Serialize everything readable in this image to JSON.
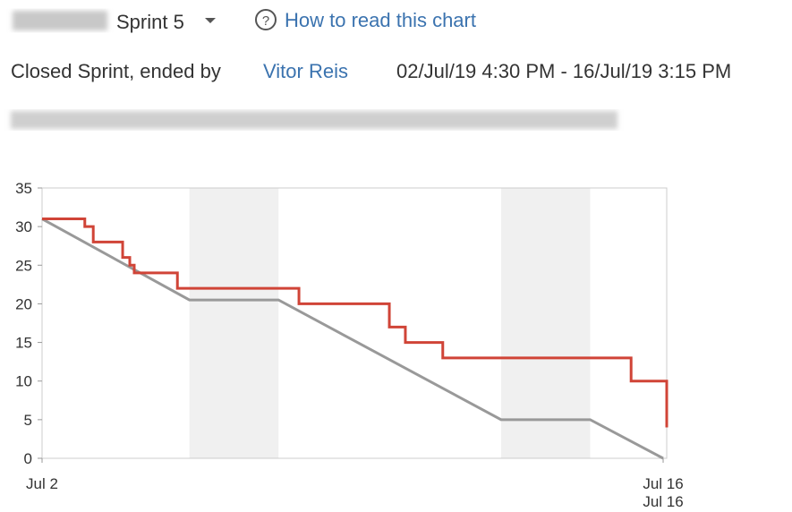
{
  "header": {
    "sprint": "Sprint 5",
    "help_link": "How to read this chart",
    "status": "Closed Sprint, ended by",
    "user": "Vitor Reis",
    "dates": "02/Jul/19 4:30 PM - 16/Jul/19 3:15 PM"
  },
  "chart_data": {
    "type": "line",
    "xlim": [
      2.69,
      16.72
    ],
    "ylim": [
      0,
      35
    ],
    "yticks": [
      0,
      5,
      10,
      15,
      20,
      25,
      30,
      35
    ],
    "xticks": [
      {
        "value": 2.69,
        "label": "Jul 2"
      },
      {
        "value": 16.64,
        "label": "Jul 16"
      }
    ],
    "x_end_label": "Jul 16",
    "non_working": [
      [
        6,
        8
      ],
      [
        13,
        15
      ]
    ],
    "series": [
      {
        "color": "#999999",
        "step": false,
        "x": [
          2.69,
          6,
          8,
          13,
          15,
          16.64
        ],
        "values": [
          31,
          20.5,
          20.5,
          5,
          5,
          0
        ]
      },
      {
        "color": "#d04437",
        "step": true,
        "x": [
          2.69,
          3.65,
          3.84,
          4.5,
          4.66,
          4.76,
          5.73,
          8.46,
          10.49,
          10.85,
          11.69,
          15.92,
          16.72
        ],
        "values": [
          31,
          30,
          28,
          26,
          25,
          24,
          22,
          20,
          17,
          15,
          13,
          10,
          4
        ]
      }
    ]
  }
}
